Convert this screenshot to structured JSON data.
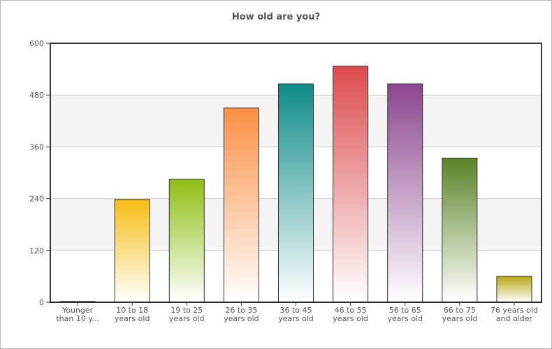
{
  "chart_data": {
    "type": "bar",
    "title": "How old are you?",
    "xlabel": "",
    "ylabel": "",
    "ylim": [
      0,
      600
    ],
    "yticks": [
      0,
      120,
      240,
      360,
      480,
      600
    ],
    "ytick_labels": [
      "0",
      "120",
      "240",
      "360",
      "480",
      "600"
    ],
    "grid": true,
    "categories": [
      [
        "Younger",
        "than 10 y..."
      ],
      [
        "10 to 18",
        "years old"
      ],
      [
        "19 to 25",
        "years old"
      ],
      [
        "26 to 35",
        "years old"
      ],
      [
        "36 to 45",
        "years old"
      ],
      [
        "46 to 55",
        "years old"
      ],
      [
        "56 to 65",
        "years old"
      ],
      [
        "66 to 75",
        "years old"
      ],
      [
        "76 years old",
        "and older"
      ]
    ],
    "values": [
      2,
      238,
      285,
      450,
      506,
      547,
      506,
      334,
      60
    ],
    "colors": [
      "#555555",
      "#f5bd14",
      "#8fbe13",
      "#fb8f44",
      "#0f8c88",
      "#dd4b4d",
      "#8b468f",
      "#5b8327",
      "#b8a816"
    ]
  }
}
